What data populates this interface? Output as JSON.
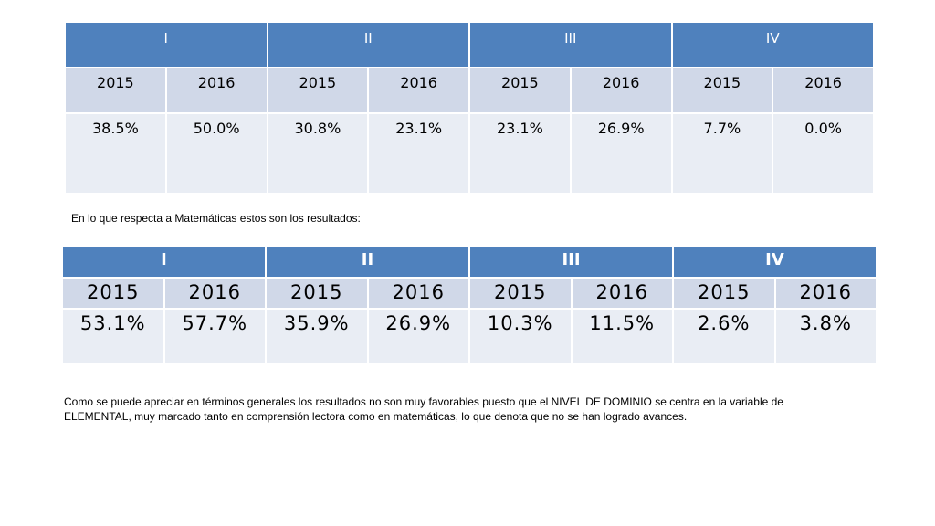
{
  "table_lectura": {
    "levels": [
      "I",
      "II",
      "III",
      "IV"
    ],
    "years": [
      "2015",
      "2016",
      "2015",
      "2016",
      "2015",
      "2016",
      "2015",
      "2016"
    ],
    "values": [
      "38.5%",
      "50.0%",
      "30.8%",
      "23.1%",
      "23.1%",
      "26.9%",
      "7.7%",
      "0.0%"
    ]
  },
  "intro_text": "En lo que respecta a Matemáticas estos son los resultados:",
  "table_matematicas": {
    "levels": [
      "I",
      "II",
      "III",
      "IV"
    ],
    "years": [
      "2015",
      "2016",
      "2015",
      "2016",
      "2015",
      "2016",
      "2015",
      "2016"
    ],
    "values": [
      "53.1%",
      "57.7%",
      "35.9%",
      "26.9%",
      "10.3%",
      "11.5%",
      "2.6%",
      "3.8%"
    ]
  },
  "conclusion_text": "Como se puede apreciar en términos generales los resultados no son muy favorables puesto que el  NIVEL DE DOMINIO se centra en la variable de ELEMENTAL, muy marcado tanto en comprensión lectora como en matemáticas, lo que denota que no se  han logrado  avances.",
  "colors": {
    "header": "#4f81bd",
    "year_row": "#d0d8e8",
    "value_row": "#e9edf4"
  }
}
